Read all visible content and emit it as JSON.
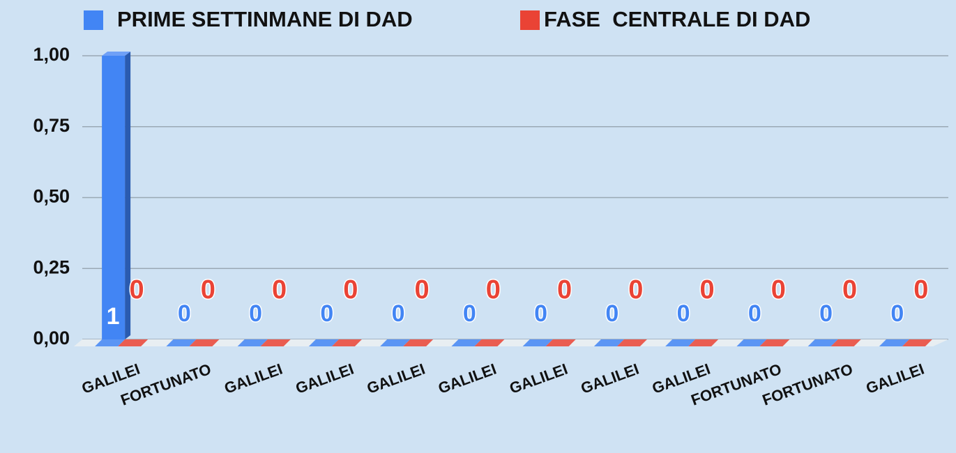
{
  "chart_data": {
    "type": "bar3d",
    "categories": [
      "GALILEI",
      "FORTUNATO",
      "GALILEI",
      "GALILEI",
      "GALILEI",
      "GALILEI",
      "GALILEI",
      "GALILEI",
      "GALILEI",
      "FORTUNATO",
      "FORTUNATO",
      "GALILEI"
    ],
    "series": [
      {
        "name": "PRIME SETTINMANE DI DAD",
        "color": "#4285f4",
        "values": [
          1,
          0,
          0,
          0,
          0,
          0,
          0,
          0,
          0,
          0,
          0,
          0
        ]
      },
      {
        "name": "FASE  CENTRALE DI DAD",
        "color": "#ea4335",
        "values": [
          0,
          0,
          0,
          0,
          0,
          0,
          0,
          0,
          0,
          0,
          0,
          0
        ]
      }
    ],
    "ylim": [
      0,
      1
    ],
    "yticks": [
      {
        "value": 0,
        "label": "0,00"
      },
      {
        "value": 0.25,
        "label": "0,25"
      },
      {
        "value": 0.5,
        "label": "0,50"
      },
      {
        "value": 0.75,
        "label": "0,75"
      },
      {
        "value": 1,
        "label": "1,00"
      }
    ],
    "grid": true,
    "legend": "top"
  }
}
